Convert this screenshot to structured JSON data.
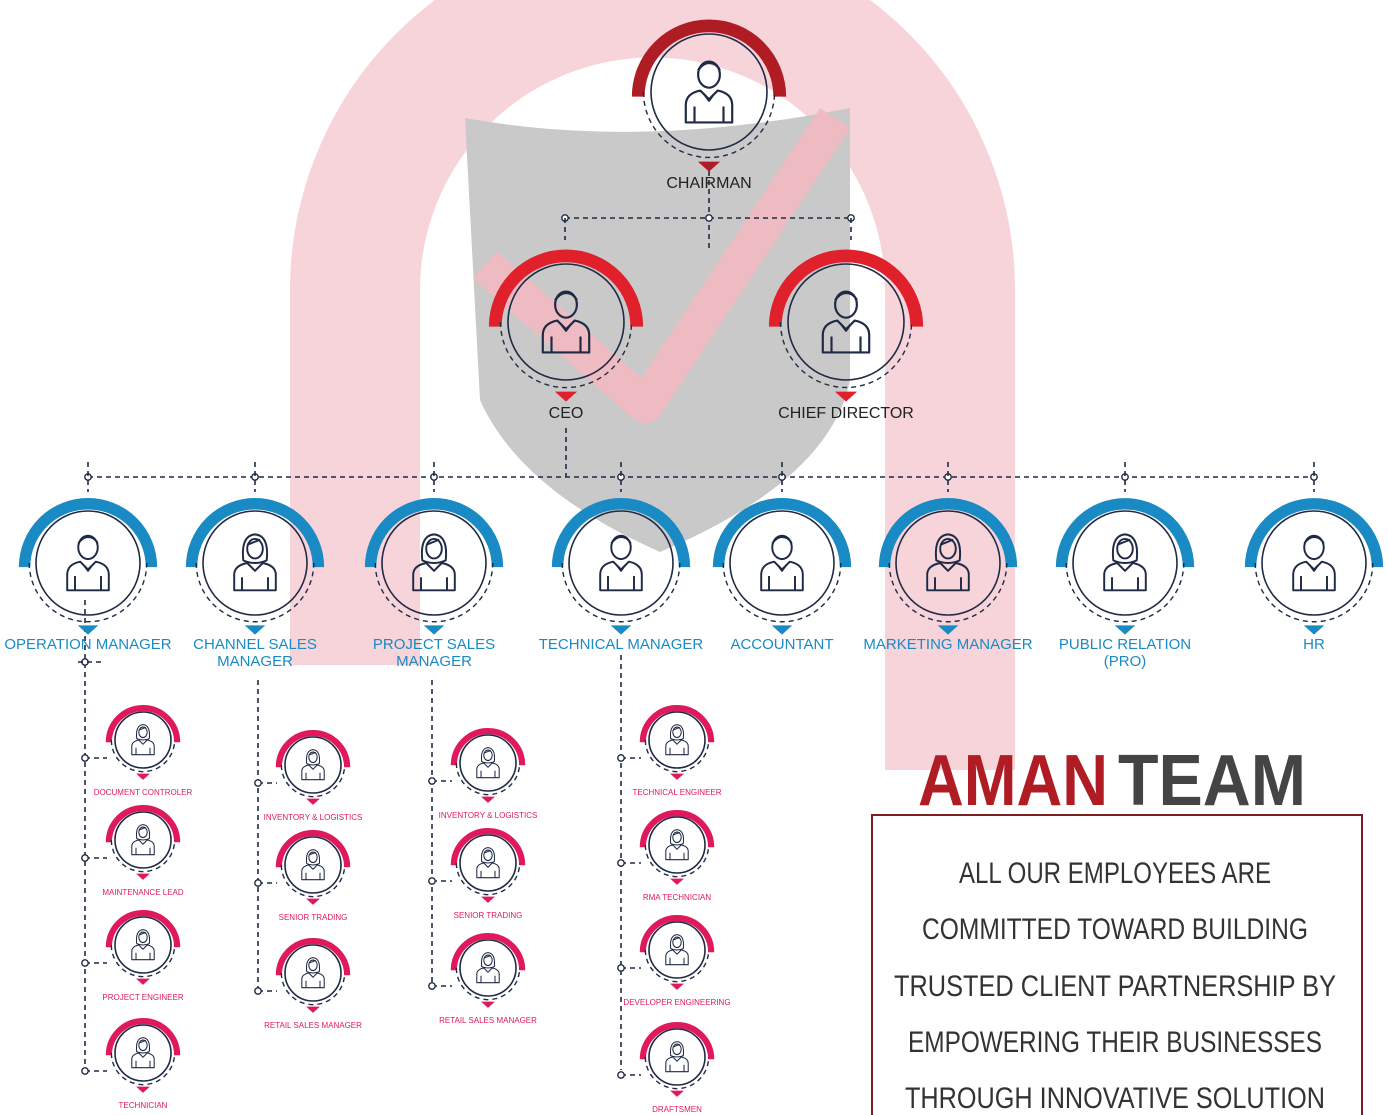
{
  "chairman": {
    "label": "CHAIRMAN"
  },
  "executives": [
    {
      "label": "CEO"
    },
    {
      "label": "CHIEF DIRECTOR"
    }
  ],
  "managers": [
    {
      "label": "OPERATION MANAGER",
      "staff": [
        "DOCUMENT CONTROLER",
        "MAINTENANCE LEAD",
        "PROJECT ENGINEER",
        "TECHNICIAN"
      ]
    },
    {
      "label": "CHANNEL SALES MANAGER",
      "staff": [
        "INVENTORY & LOGISTICS",
        "SENIOR TRADING",
        "RETAIL SALES MANAGER"
      ]
    },
    {
      "label": "PROJECT SALES MANAGER",
      "staff": [
        "INVENTORY & LOGISTICS",
        "SENIOR TRADING",
        "RETAIL SALES MANAGER"
      ]
    },
    {
      "label": "TECHNICAL MANAGER",
      "staff": [
        "TECHNICAL ENGINEER",
        "RMA TECHNICIAN",
        "DEVELOPER ENGINEERING",
        "DRAFTSMEN"
      ]
    },
    {
      "label": "ACCOUNTANT"
    },
    {
      "label": "MARKETING MANAGER"
    },
    {
      "label": "PUBLIC RELATION (PRO)"
    },
    {
      "label": "HR"
    }
  ],
  "brand": {
    "title_red": "AMAN",
    "title_dark": "TEAM",
    "statement": [
      "ALL OUR EMPLOYEES ARE",
      "COMMITTED TOWARD BUILDING",
      "TRUSTED CLIENT PARTNERSHIP BY",
      "EMPOWERING THEIR BUSINESSES",
      "THROUGH INNOVATIVE SOLUTION"
    ]
  }
}
